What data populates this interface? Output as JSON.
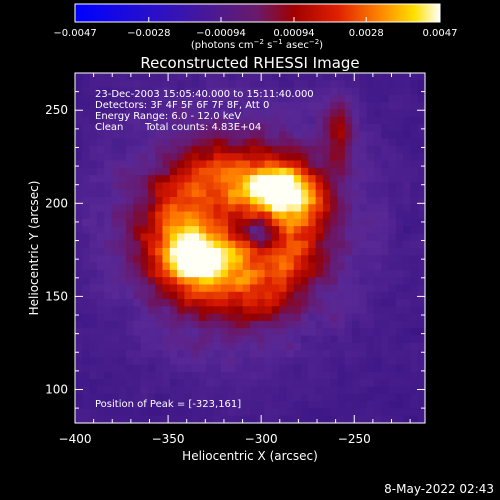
{
  "chart_data": {
    "type": "heatmap",
    "title": "Reconstructed RHESSI Image",
    "xlabel": "Heliocentric X (arcsec)",
    "ylabel": "Heliocentric Y (arcsec)",
    "xlim": [
      -400,
      -212
    ],
    "ylim": [
      82,
      270
    ],
    "x_ticks": [
      "−400",
      "−350",
      "−300",
      "−250"
    ],
    "x_tick_values": [
      -400,
      -350,
      -300,
      -250
    ],
    "y_ticks": [
      "100",
      "150",
      "200",
      "250"
    ],
    "y_tick_values": [
      100,
      150,
      200,
      250
    ],
    "colorbar": {
      "tick_labels": [
        "−0.0047",
        "−0.0028",
        "−0.00094",
        "0.00094",
        "0.0028",
        "0.0047"
      ],
      "tick_values": [
        -0.0047,
        -0.0028,
        -0.00094,
        0.00094,
        0.0028,
        0.0047
      ],
      "range": [
        -0.0047,
        0.0047
      ],
      "units_text": "(photons cm",
      "units_sup1": "−2",
      "units_mid": " s",
      "units_sup2": "−1",
      "units_tail": " asec",
      "units_sup3": "−2",
      "units_close": ")"
    },
    "annotations": {
      "time_range": "23-Dec-2003 15:05:40.000 to 15:11:40.000",
      "detectors": "Detectors: 3F 4F 5F 6F 7F 8F, Att 0",
      "energy_range": "Energy Range: 6.0 - 12.0 keV",
      "method": "Clean",
      "total_counts": "Total counts: 4.83E+04",
      "peak": "Position of Peak = [-323,161]"
    },
    "sources": [
      {
        "cx": -330,
        "cy": 178,
        "peak": 0.0047,
        "description": "lower-left bright arc"
      },
      {
        "cx": -290,
        "cy": 205,
        "peak": 0.004,
        "description": "upper-right bright arc"
      }
    ],
    "grid": false,
    "colormap": [
      "#0000ff",
      "#3b0a86",
      "#5a2a9a",
      "#8a0000",
      "#e01000",
      "#ff7a00",
      "#ffd000",
      "#ffffff"
    ]
  },
  "footer": {
    "date": "8-May-2022 02:43"
  }
}
